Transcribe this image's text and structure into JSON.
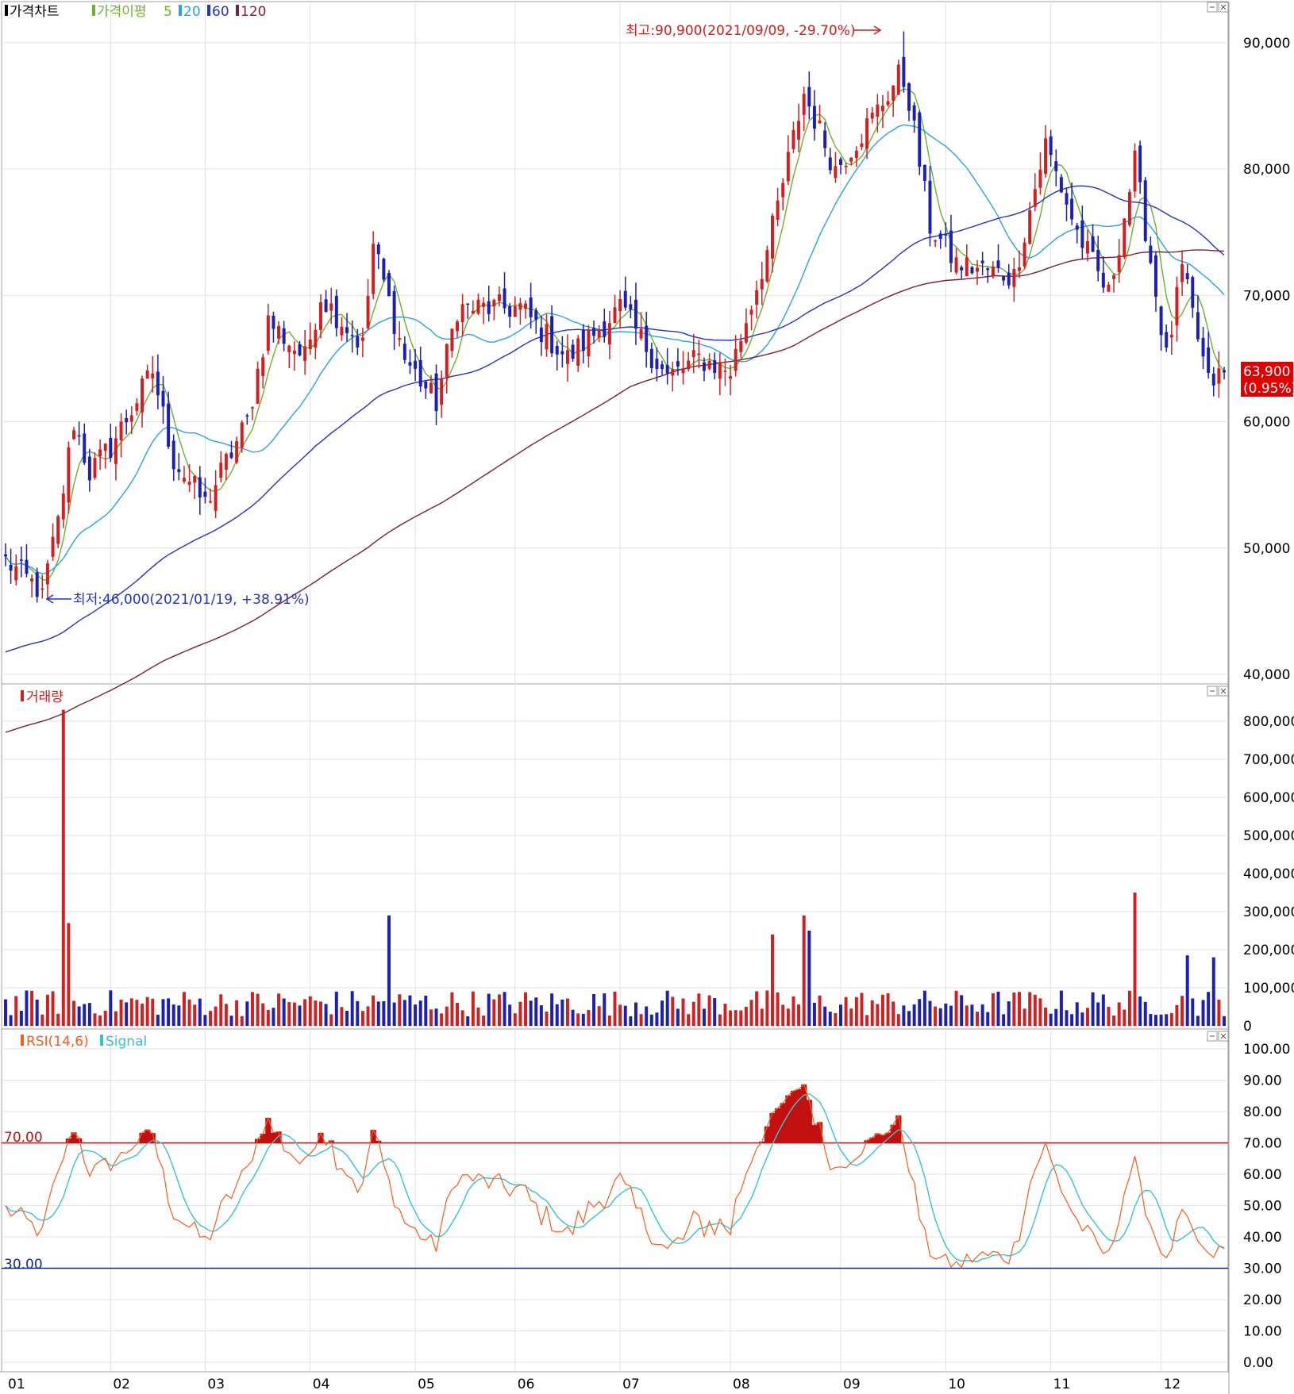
{
  "colors": {
    "up": "#d21f1f",
    "down": "#1c1fb4",
    "ma5": "#6bb32e",
    "ma20": "#2aa3e6",
    "ma60": "#2233cc",
    "ma120": "#7a1f3a",
    "rsi": "#ff5a1f",
    "signal": "#36c4d2",
    "overbought": "#c21010",
    "oversold": "#102a8c"
  },
  "price_panel": {
    "title": "가격차트",
    "ma_title": "가격이평",
    "ma_periods": [
      "5",
      "20",
      "60",
      "120"
    ],
    "high_annotation": "최고:90,900(2021/09/09, -29.70%)",
    "low_annotation": "최저:46,000(2021/01/19, +38.91%)",
    "last_price_label": "63,900",
    "last_change_label": "(0.95%)"
  },
  "volume_panel": {
    "title": "거래량"
  },
  "rsi_panel": {
    "title": "RSI(14,6)",
    "signal_title": "Signal",
    "upper_label": "70.00",
    "lower_label": "30.00"
  },
  "chart_data": [
    {
      "type": "candlestick",
      "title": "가격차트",
      "ylim": [
        40000,
        91500
      ],
      "yticks": [
        "40,000",
        "50,000",
        "60,000",
        "70,000",
        "80,000",
        "90,000"
      ],
      "ytick_values": [
        40000,
        50000,
        60000,
        70000,
        80000,
        90000
      ],
      "x_months": [
        "01",
        "02",
        "03",
        "04",
        "05",
        "06",
        "07",
        "08",
        "09",
        "10",
        "11",
        "12"
      ],
      "month_start_index": [
        0,
        20,
        38,
        58,
        78,
        97,
        117,
        138,
        159,
        179,
        199,
        220
      ],
      "trading_days": 233,
      "series_names": [
        "5",
        "20",
        "60",
        "120"
      ],
      "key_points": [
        {
          "i": 0,
          "close": 49000
        },
        {
          "i": 7,
          "close": 46500
        },
        {
          "i": 10,
          "close": 52000
        },
        {
          "i": 13,
          "close": 60000
        },
        {
          "i": 16,
          "close": 56000
        },
        {
          "i": 20,
          "close": 58000
        },
        {
          "i": 28,
          "close": 64000
        },
        {
          "i": 32,
          "close": 57000
        },
        {
          "i": 38,
          "close": 53500
        },
        {
          "i": 46,
          "close": 60000
        },
        {
          "i": 50,
          "close": 68000
        },
        {
          "i": 57,
          "close": 65000
        },
        {
          "i": 60,
          "close": 70000
        },
        {
          "i": 68,
          "close": 66000
        },
        {
          "i": 70,
          "close": 74000
        },
        {
          "i": 76,
          "close": 65000
        },
        {
          "i": 82,
          "close": 61500
        },
        {
          "i": 86,
          "close": 69000
        },
        {
          "i": 98,
          "close": 69000
        },
        {
          "i": 107,
          "close": 65000
        },
        {
          "i": 117,
          "close": 69000
        },
        {
          "i": 126,
          "close": 63500
        },
        {
          "i": 132,
          "close": 65000
        },
        {
          "i": 138,
          "close": 64000
        },
        {
          "i": 145,
          "close": 73500
        },
        {
          "i": 152,
          "close": 86000
        },
        {
          "i": 158,
          "close": 80000
        },
        {
          "i": 165,
          "close": 84000
        },
        {
          "i": 171,
          "close": 88000
        },
        {
          "i": 176,
          "close": 75500
        },
        {
          "i": 181,
          "close": 72500
        },
        {
          "i": 192,
          "close": 71500
        },
        {
          "i": 198,
          "close": 82000
        },
        {
          "i": 204,
          "close": 75000
        },
        {
          "i": 210,
          "close": 70000
        },
        {
          "i": 215,
          "close": 80500
        },
        {
          "i": 221,
          "close": 65000
        },
        {
          "i": 224,
          "close": 72000
        },
        {
          "i": 229,
          "close": 63000
        },
        {
          "i": 232,
          "close": 63900
        }
      ],
      "high": {
        "value": 90900,
        "date": "2021/09/09"
      },
      "low": {
        "value": 46000,
        "date": "2021/01/19"
      },
      "last": 63900
    },
    {
      "type": "bar",
      "title": "거래량",
      "ylim": [
        0,
        850000
      ],
      "yticks": [
        "0",
        "100,000",
        "200,000",
        "300,000",
        "400,000",
        "500,000",
        "600,000",
        "700,000",
        "800,000"
      ],
      "ytick_values": [
        0,
        100000,
        200000,
        300000,
        400000,
        500000,
        600000,
        700000,
        800000
      ],
      "spikes": [
        {
          "i": 11,
          "value": 830000
        },
        {
          "i": 12,
          "value": 270000
        },
        {
          "i": 73,
          "value": 290000
        },
        {
          "i": 146,
          "value": 240000
        },
        {
          "i": 152,
          "value": 290000
        },
        {
          "i": 153,
          "value": 250000
        },
        {
          "i": 215,
          "value": 350000
        },
        {
          "i": 225,
          "value": 185000
        },
        {
          "i": 230,
          "value": 180000
        }
      ]
    },
    {
      "type": "line",
      "title": "RSI(14,6)",
      "ylim": [
        0,
        100
      ],
      "yticks": [
        "0.00",
        "10.00",
        "20.00",
        "30.00",
        "40.00",
        "50.00",
        "60.00",
        "70.00",
        "80.00",
        "90.00",
        "100.00"
      ],
      "ytick_values": [
        0,
        10,
        20,
        30,
        40,
        50,
        60,
        70,
        80,
        90,
        100
      ],
      "reference_lines": [
        70,
        30
      ],
      "series_names": [
        "RSI(14,6)",
        "Signal"
      ]
    }
  ]
}
